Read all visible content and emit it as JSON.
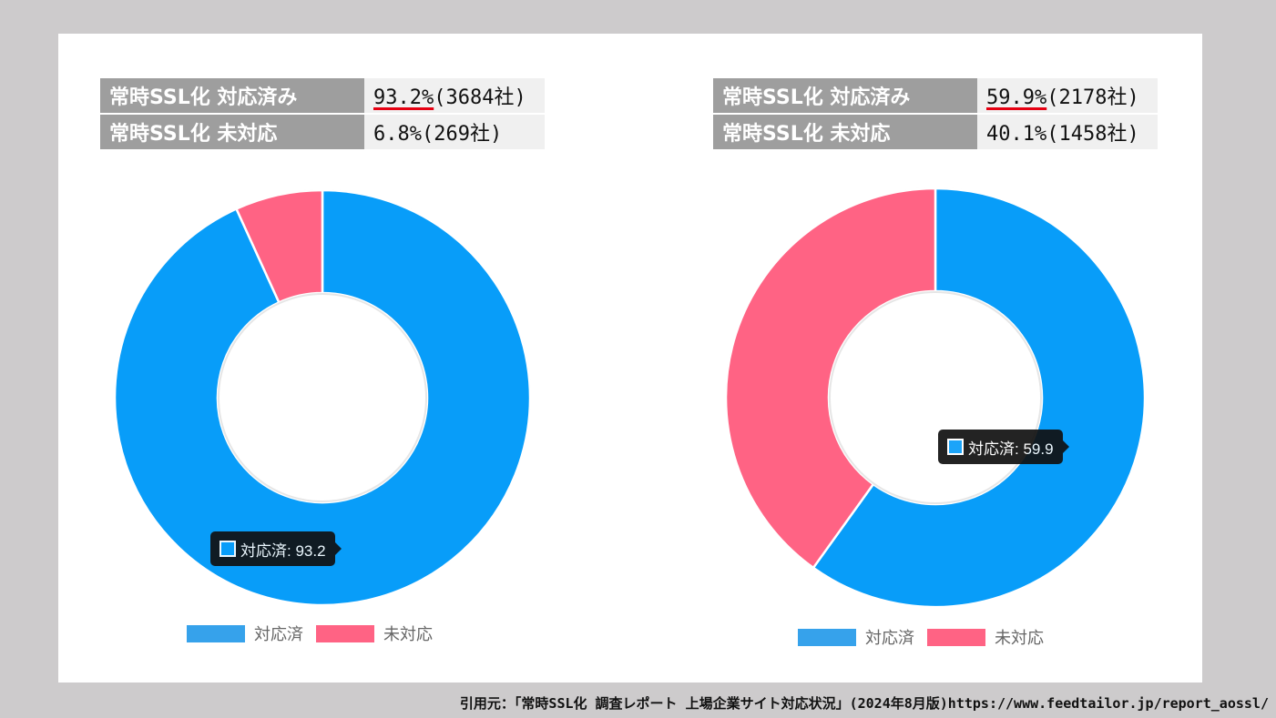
{
  "panels": [
    {
      "stats": [
        {
          "label": "常時SSL化 対応済み",
          "value_highlight": "93.2%",
          "value_rest": "(3684社)"
        },
        {
          "label": "常時SSL化 未対応",
          "value_highlight": "",
          "value_rest": "6.8%(269社)"
        }
      ],
      "tooltip": "対応済: 93.2",
      "legend": [
        "対応済",
        "未対応"
      ]
    },
    {
      "stats": [
        {
          "label": "常時SSL化 対応済み",
          "value_highlight": "59.9%",
          "value_rest": "(2178社)"
        },
        {
          "label": "常時SSL化 未対応",
          "value_highlight": "",
          "value_rest": "40.1%(1458社)"
        }
      ],
      "tooltip": "対応済: 59.9",
      "legend": [
        "対応済",
        "未対応"
      ]
    }
  ],
  "colors": {
    "handled": "#089df9",
    "not_handled": "#ff6384",
    "legend_handled": "#36a2eb",
    "legend_not_handled": "#ff6384"
  },
  "chart_data": [
    {
      "type": "pie",
      "categories": [
        "対応済",
        "未対応"
      ],
      "values": [
        93.2,
        6.8
      ]
    },
    {
      "type": "pie",
      "categories": [
        "対応済",
        "未対応"
      ],
      "values": [
        59.9,
        40.1
      ]
    }
  ],
  "source": "引用元：「常時SSL化 調査レポート 上場企業サイト対応状況」(2024年8月版)https://www.feedtailor.jp/report_aossl/"
}
